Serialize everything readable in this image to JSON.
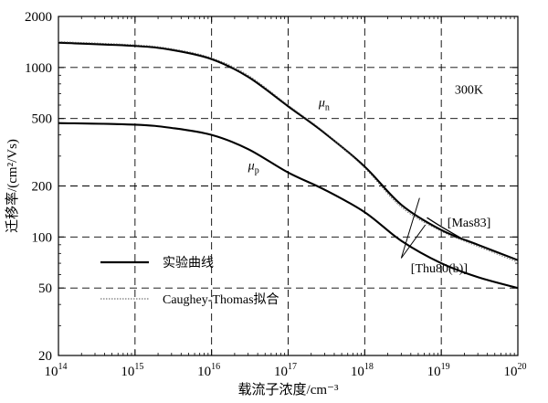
{
  "chart_data": {
    "type": "line",
    "xlabel": "载流子浓度/cm⁻³",
    "ylabel": "迁移率/(cm²/Vs)",
    "x_scale": "log",
    "y_scale": "log",
    "xlim": [
      100000000000000.0,
      1e+20
    ],
    "ylim": [
      20,
      2000
    ],
    "grid": true,
    "x_ticks": [
      {
        "value": 100000000000000.0,
        "base": "10",
        "exp": "14"
      },
      {
        "value": 1000000000000000.0,
        "base": "10",
        "exp": "15"
      },
      {
        "value": 1e+16,
        "base": "10",
        "exp": "16"
      },
      {
        "value": 1e+17,
        "base": "10",
        "exp": "17"
      },
      {
        "value": 1e+18,
        "base": "10",
        "exp": "18"
      },
      {
        "value": 1e+19,
        "base": "10",
        "exp": "19"
      },
      {
        "value": 1e+20,
        "base": "10",
        "exp": "20"
      }
    ],
    "y_ticks": [
      {
        "value": 20,
        "label": "20"
      },
      {
        "value": 50,
        "label": "50"
      },
      {
        "value": 100,
        "label": "100"
      },
      {
        "value": 200,
        "label": "200"
      },
      {
        "value": 500,
        "label": "500"
      },
      {
        "value": 1000,
        "label": "1000"
      },
      {
        "value": 2000,
        "label": "2000"
      }
    ],
    "legend": {
      "placement": "bottom-left",
      "entries": [
        {
          "label": "实验曲线",
          "style": "solid-thick"
        },
        {
          "label": "Caughey-Thomas拟合",
          "style": "dotted-thin"
        }
      ]
    },
    "series": [
      {
        "name": "μn",
        "style": "solid-thick",
        "x": [
          100000000000000.0,
          1000000000000000.0,
          3000000000000000.0,
          1e+16,
          3e+16,
          1e+17,
          3e+17,
          1e+18,
          3e+18,
          1e+19,
          3e+19,
          1e+20
        ],
        "y": [
          1400,
          1340,
          1270,
          1120,
          880,
          590,
          410,
          260,
          155,
          110,
          90,
          73
        ]
      },
      {
        "name": "μn-fit",
        "style": "dotted-thin",
        "x": [
          100000000000000.0,
          1000000000000000.0,
          3000000000000000.0,
          1e+16,
          3e+16,
          1e+17,
          3e+17,
          1e+18,
          3e+18,
          1e+19,
          3e+19,
          1e+20
        ],
        "y": [
          1420,
          1360,
          1290,
          1140,
          900,
          600,
          415,
          255,
          150,
          108,
          88,
          71
        ]
      },
      {
        "name": "μp",
        "style": "solid-thick",
        "x": [
          100000000000000.0,
          1000000000000000.0,
          3000000000000000.0,
          1e+16,
          3e+16,
          1e+17,
          3e+17,
          1e+18,
          3e+18,
          1e+19,
          3e+19,
          1e+20
        ],
        "y": [
          470,
          460,
          440,
          400,
          330,
          240,
          190,
          140,
          95,
          70,
          58,
          50
        ]
      },
      {
        "name": "Mas83",
        "style": "solid-thin",
        "x": [
          6.5e+18,
          1e+19,
          2e+19
        ],
        "y": [
          130,
          115,
          96
        ]
      }
    ],
    "annotations": {
      "mu_n": {
        "text": "μ",
        "sub": "n",
        "x": 2.5e+17,
        "y": 590
      },
      "mu_p": {
        "text": "μ",
        "sub": "p",
        "x": 3e+16,
        "y": 250
      },
      "temp": {
        "text": "300K",
        "x": 1.5e+19,
        "y": 700
      },
      "mas83": {
        "text": "[Mas83]",
        "x": 1.2e+19,
        "y": 115
      },
      "thu80": {
        "text": "[Thu80(b)]",
        "x": 4e+18,
        "y": 62,
        "pointer_from": [
          3e+18,
          75
        ],
        "pointer_to": [
          [
            5.2e+18,
            170
          ],
          [
            6.2e+18,
            118
          ]
        ]
      }
    }
  }
}
